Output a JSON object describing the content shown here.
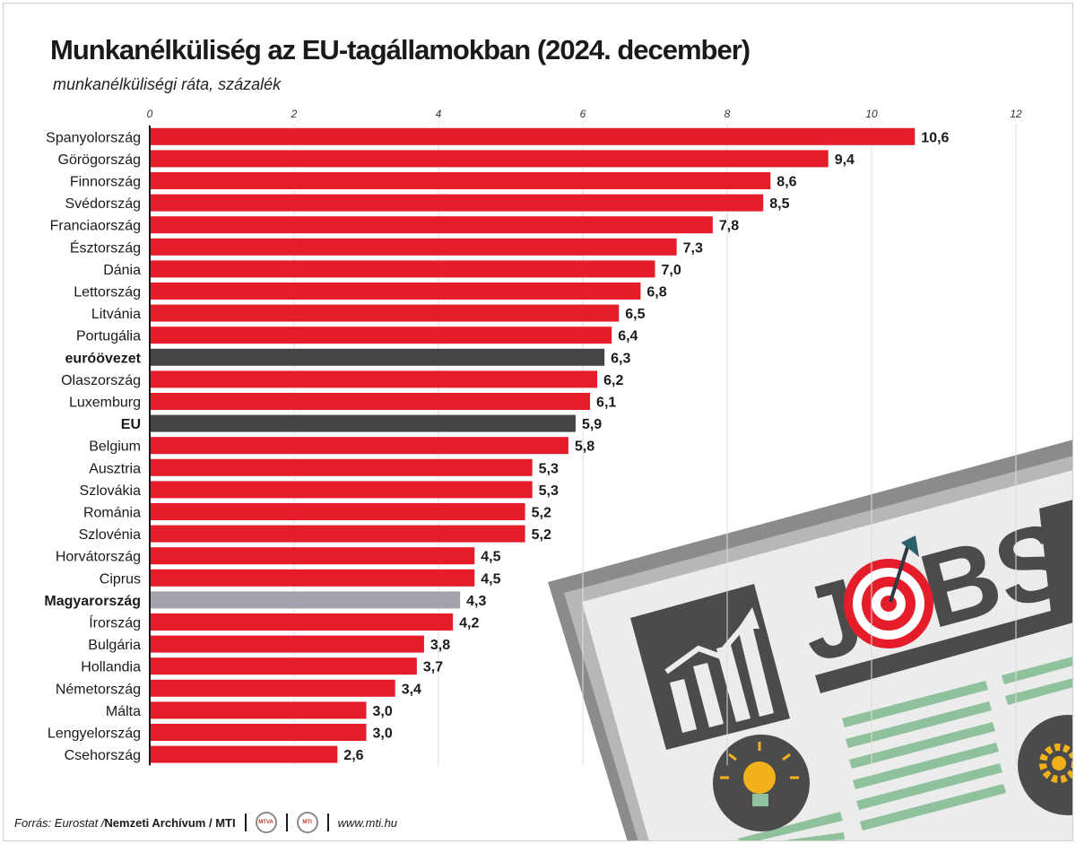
{
  "chart_data": {
    "type": "bar",
    "orientation": "horizontal",
    "title": "Munkanélküliség az EU-tagállamokban (2024. december)",
    "subtitle": "munkanélküliségi ráta, százalék",
    "xlim": [
      0,
      12
    ],
    "ticks": [
      0,
      2,
      4,
      6,
      8,
      10,
      12
    ],
    "grid": true,
    "bars": [
      {
        "label": "Spanyolország",
        "value": 10.6,
        "value_label": "10,6",
        "group": "country",
        "emphasis": false,
        "color": "#e51c2a"
      },
      {
        "label": "Görögország",
        "value": 9.4,
        "value_label": "9,4",
        "group": "country",
        "emphasis": false,
        "color": "#e51c2a"
      },
      {
        "label": "Finnország",
        "value": 8.6,
        "value_label": "8,6",
        "group": "country",
        "emphasis": false,
        "color": "#e51c2a"
      },
      {
        "label": "Svédország",
        "value": 8.5,
        "value_label": "8,5",
        "group": "country",
        "emphasis": false,
        "color": "#e51c2a"
      },
      {
        "label": "Franciaország",
        "value": 7.8,
        "value_label": "7,8",
        "group": "country",
        "emphasis": false,
        "color": "#e51c2a"
      },
      {
        "label": "Észtország",
        "value": 7.3,
        "value_label": "7,3",
        "group": "country",
        "emphasis": false,
        "color": "#e51c2a"
      },
      {
        "label": "Dánia",
        "value": 7.0,
        "value_label": "7,0",
        "group": "country",
        "emphasis": false,
        "color": "#e51c2a"
      },
      {
        "label": "Lettország",
        "value": 6.8,
        "value_label": "6,8",
        "group": "country",
        "emphasis": false,
        "color": "#e51c2a"
      },
      {
        "label": "Litvánia",
        "value": 6.5,
        "value_label": "6,5",
        "group": "country",
        "emphasis": false,
        "color": "#e51c2a"
      },
      {
        "label": "Portugália",
        "value": 6.4,
        "value_label": "6,4",
        "group": "country",
        "emphasis": false,
        "color": "#e51c2a"
      },
      {
        "label": "euróövezet",
        "value": 6.3,
        "value_label": "6,3",
        "group": "aggregate",
        "emphasis": true,
        "color": "#454545"
      },
      {
        "label": "Olaszország",
        "value": 6.2,
        "value_label": "6,2",
        "group": "country",
        "emphasis": false,
        "color": "#e51c2a"
      },
      {
        "label": "Luxemburg",
        "value": 6.1,
        "value_label": "6,1",
        "group": "country",
        "emphasis": false,
        "color": "#e51c2a"
      },
      {
        "label": "EU",
        "value": 5.9,
        "value_label": "5,9",
        "group": "aggregate",
        "emphasis": true,
        "color": "#454545"
      },
      {
        "label": "Belgium",
        "value": 5.8,
        "value_label": "5,8",
        "group": "country",
        "emphasis": false,
        "color": "#e51c2a"
      },
      {
        "label": "Ausztria",
        "value": 5.3,
        "value_label": "5,3",
        "group": "country",
        "emphasis": false,
        "color": "#e51c2a"
      },
      {
        "label": "Szlovákia",
        "value": 5.3,
        "value_label": "5,3",
        "group": "country",
        "emphasis": false,
        "color": "#e51c2a"
      },
      {
        "label": "Románia",
        "value": 5.2,
        "value_label": "5,2",
        "group": "country",
        "emphasis": false,
        "color": "#e51c2a"
      },
      {
        "label": "Szlovénia",
        "value": 5.2,
        "value_label": "5,2",
        "group": "country",
        "emphasis": false,
        "color": "#e51c2a"
      },
      {
        "label": "Horvátország",
        "value": 4.5,
        "value_label": "4,5",
        "group": "country",
        "emphasis": false,
        "color": "#e51c2a"
      },
      {
        "label": "Ciprus",
        "value": 4.5,
        "value_label": "4,5",
        "group": "country",
        "emphasis": false,
        "color": "#e51c2a"
      },
      {
        "label": "Magyarország",
        "value": 4.3,
        "value_label": "4,3",
        "group": "highlight",
        "emphasis": true,
        "color": "#a3a3ad"
      },
      {
        "label": "Írország",
        "value": 4.2,
        "value_label": "4,2",
        "group": "country",
        "emphasis": false,
        "color": "#e51c2a"
      },
      {
        "label": "Bulgária",
        "value": 3.8,
        "value_label": "3,8",
        "group": "country",
        "emphasis": false,
        "color": "#e51c2a"
      },
      {
        "label": "Hollandia",
        "value": 3.7,
        "value_label": "3,7",
        "group": "country",
        "emphasis": false,
        "color": "#e51c2a"
      },
      {
        "label": "Németország",
        "value": 3.4,
        "value_label": "3,4",
        "group": "country",
        "emphasis": false,
        "color": "#e51c2a"
      },
      {
        "label": "Málta",
        "value": 3.0,
        "value_label": "3,0",
        "group": "country",
        "emphasis": false,
        "color": "#e51c2a"
      },
      {
        "label": "Lengyelország",
        "value": 3.0,
        "value_label": "3,0",
        "group": "country",
        "emphasis": false,
        "color": "#e51c2a"
      },
      {
        "label": "Csehország",
        "value": 2.6,
        "value_label": "2,6",
        "group": "country",
        "emphasis": false,
        "color": "#e51c2a"
      }
    ]
  },
  "footer": {
    "source_prefix": "Forrás: Eurostat / ",
    "source_bold": "Nemzeti Archívum / MTI",
    "logo1": "MTVA",
    "logo2": "MTI",
    "website": "www.mti.hu"
  },
  "illustration": {
    "headline": "JOBS",
    "icons": [
      "growth-chart-icon",
      "target-icon",
      "lightbulb-icon",
      "gear-icon"
    ]
  }
}
